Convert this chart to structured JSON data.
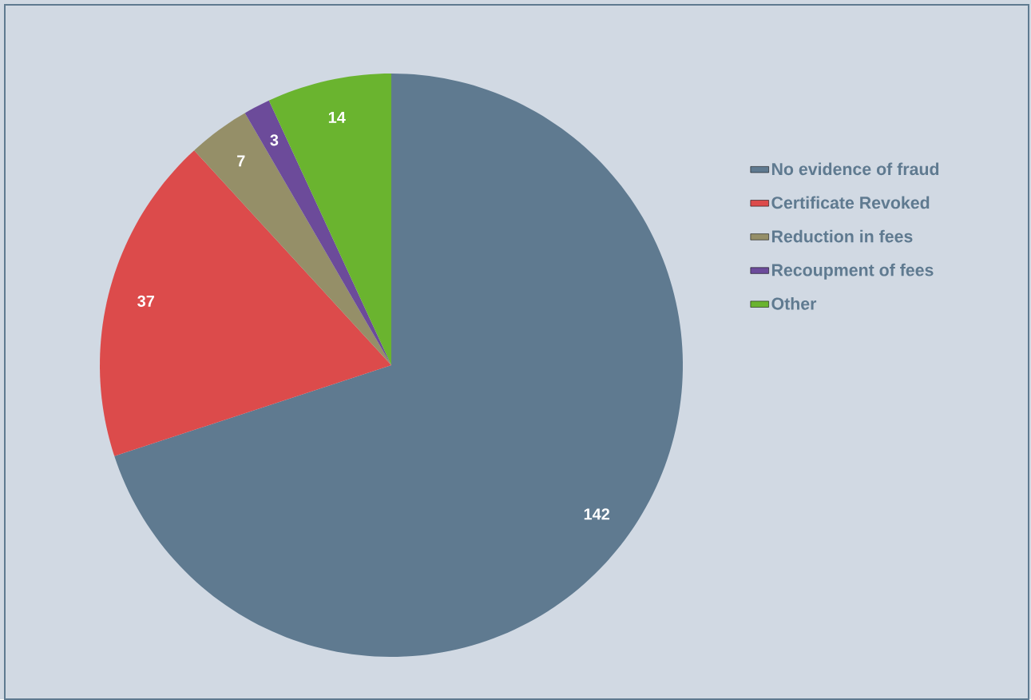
{
  "chart_data": {
    "type": "pie",
    "categories": [
      "No evidence of fraud",
      "Certificate Revoked",
      "Reduction in fees",
      "Recoupment of fees",
      "Other"
    ],
    "values": [
      142,
      37,
      7,
      3,
      14
    ],
    "colors": [
      "#5f7a90",
      "#dc4b4b",
      "#958f68",
      "#6c4b9a",
      "#6ab42f"
    ],
    "data_labels": true,
    "legend": "right"
  }
}
